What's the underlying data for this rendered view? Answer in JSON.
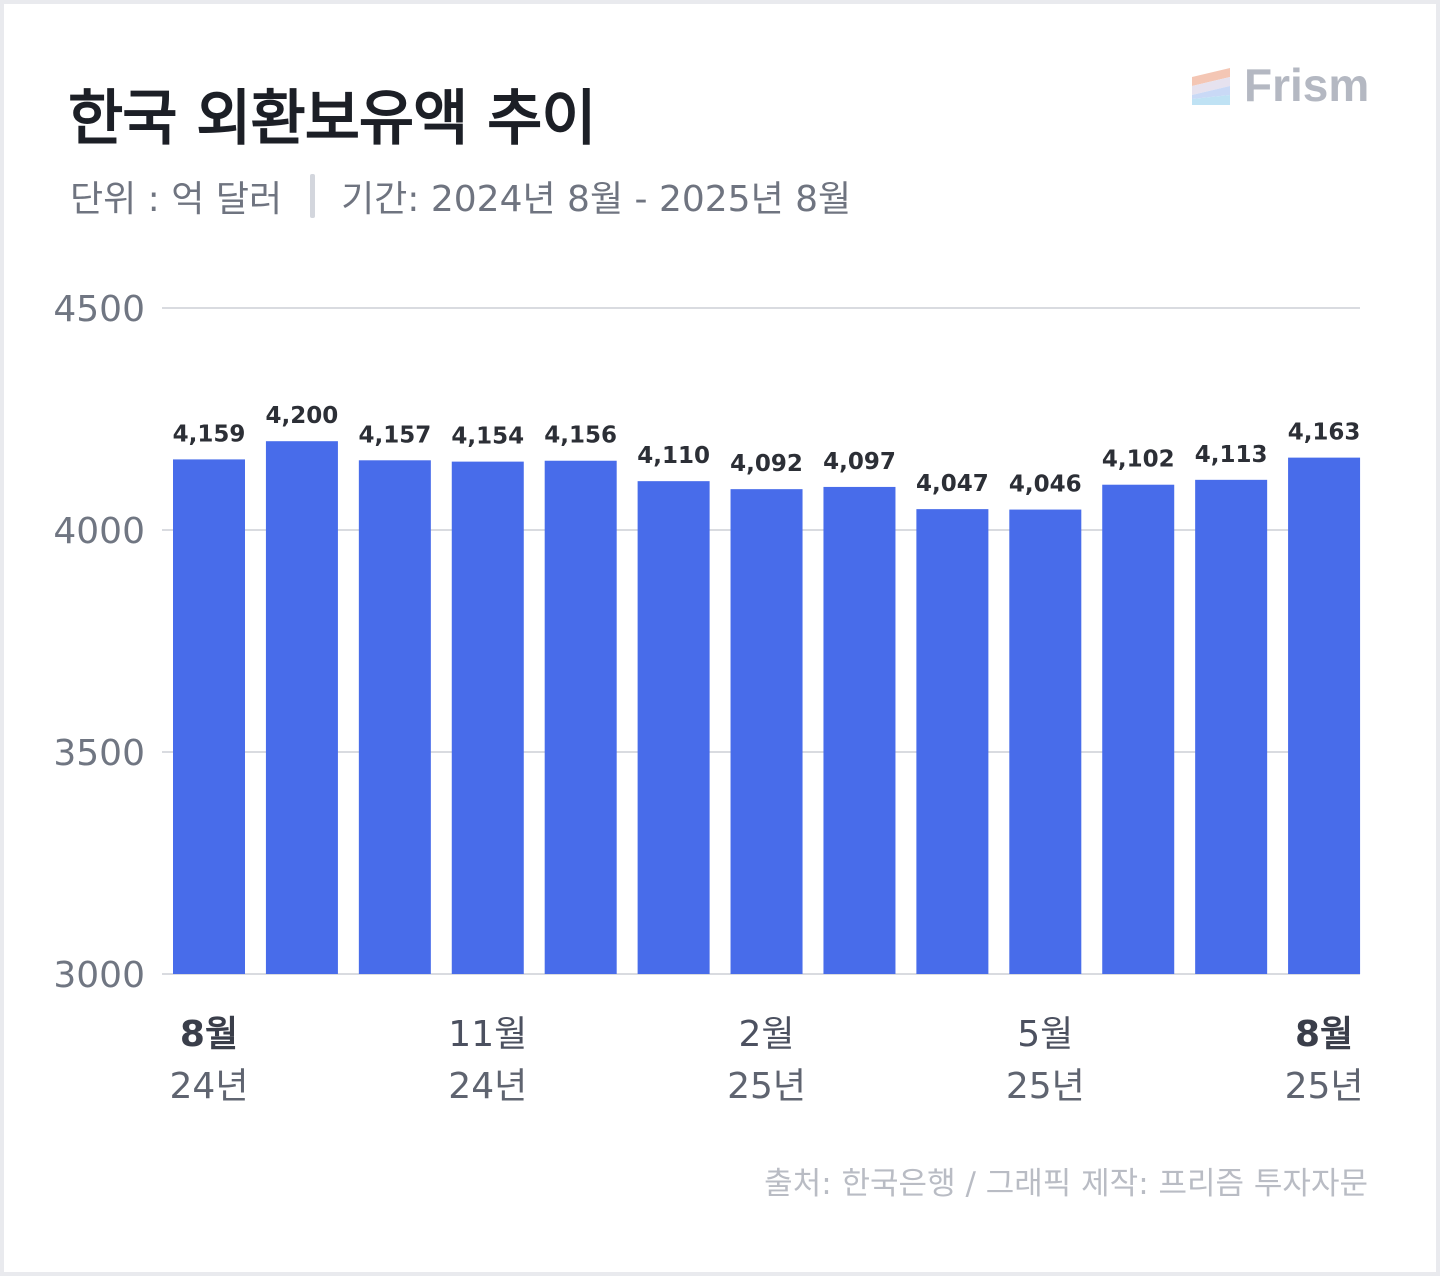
{
  "header": {
    "title": "한국 외환보유액 추이",
    "unit": "단위 : 억 달러",
    "period": "기간: 2024년 8월 - 2025년 8월"
  },
  "logo": {
    "text": "Frism",
    "stripe_colors": [
      "#f4c6b4",
      "#e6e2ef",
      "#c9d9f6",
      "#bfe2f4"
    ]
  },
  "footer": {
    "source": "출처: 한국은행 / 그래픽 제작: 프리즘 투자자문"
  },
  "chart_data": {
    "type": "bar",
    "title": "한국 외환보유액 추이",
    "ylim": [
      3000,
      4500
    ],
    "yticks": [
      3000,
      3500,
      4000,
      4500
    ],
    "grid": true,
    "bar_color": "#486cea",
    "categories": [
      "2024-08",
      "2024-09",
      "2024-10",
      "2024-11",
      "2024-12",
      "2025-01",
      "2025-02",
      "2025-03",
      "2025-04",
      "2025-05",
      "2025-06",
      "2025-07",
      "2025-08"
    ],
    "values": [
      4159,
      4200,
      4157,
      4154,
      4156,
      4110,
      4092,
      4097,
      4047,
      4046,
      4102,
      4113,
      4163
    ],
    "value_labels": [
      "4,159",
      "4,200",
      "4,157",
      "4,154",
      "4,156",
      "4,110",
      "4,092",
      "4,097",
      "4,047",
      "4,046",
      "4,102",
      "4,113",
      "4,163"
    ],
    "x_tick_labels": [
      {
        "index": 0,
        "month": "8월",
        "year": "24년",
        "bold": true
      },
      {
        "index": 3,
        "month": "11월",
        "year": "24년",
        "bold": false
      },
      {
        "index": 6,
        "month": "2월",
        "year": "25년",
        "bold": false
      },
      {
        "index": 9,
        "month": "5월",
        "year": "25년",
        "bold": false
      },
      {
        "index": 12,
        "month": "8월",
        "year": "25년",
        "bold": true
      }
    ]
  }
}
